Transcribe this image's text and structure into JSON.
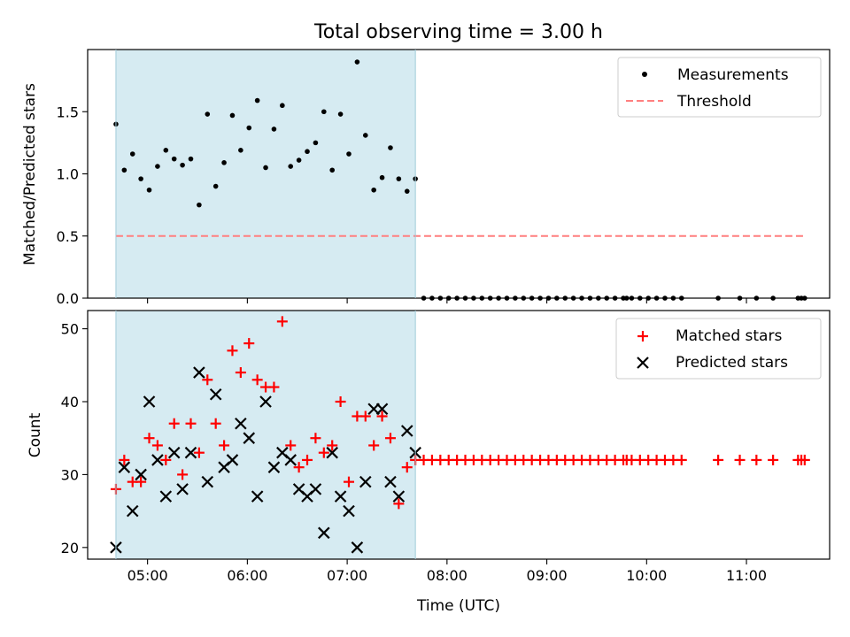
{
  "figure": {
    "title": "Total observing time = 3.00 h"
  },
  "chart_data": [
    {
      "type": "scatter",
      "ylabel": "Matched/Predicted stars",
      "xlabel": "",
      "x_axis": "time (UTC)",
      "xlim": [
        "04:24",
        "11:50"
      ],
      "ylim": [
        0,
        2.0
      ],
      "yticks": [
        0.0,
        0.5,
        1.0,
        1.5
      ],
      "xticks": [
        "05:00",
        "06:00",
        "07:00",
        "08:00",
        "09:00",
        "10:00",
        "11:00"
      ],
      "shaded_interval": [
        "04:41",
        "07:41"
      ],
      "legend_position": "top-right",
      "series": [
        {
          "name": "Measurements",
          "marker": "dot",
          "color": "#000000",
          "points": [
            [
              "04:41",
              1.4
            ],
            [
              "04:46",
              1.03
            ],
            [
              "04:51",
              1.16
            ],
            [
              "04:56",
              0.96
            ],
            [
              "05:01",
              0.87
            ],
            [
              "05:06",
              1.06
            ],
            [
              "05:11",
              1.19
            ],
            [
              "05:16",
              1.12
            ],
            [
              "05:21",
              1.07
            ],
            [
              "05:26",
              1.12
            ],
            [
              "05:31",
              0.75
            ],
            [
              "05:36",
              1.48
            ],
            [
              "05:41",
              0.9
            ],
            [
              "05:46",
              1.09
            ],
            [
              "05:51",
              1.47
            ],
            [
              "05:56",
              1.19
            ],
            [
              "06:01",
              1.37
            ],
            [
              "06:06",
              1.59
            ],
            [
              "06:11",
              1.05
            ],
            [
              "06:16",
              1.36
            ],
            [
              "06:21",
              1.55
            ],
            [
              "06:26",
              1.06
            ],
            [
              "06:31",
              1.11
            ],
            [
              "06:36",
              1.18
            ],
            [
              "06:41",
              1.25
            ],
            [
              "06:46",
              1.5
            ],
            [
              "06:51",
              1.03
            ],
            [
              "06:56",
              1.48
            ],
            [
              "07:01",
              1.16
            ],
            [
              "07:06",
              1.9
            ],
            [
              "07:11",
              1.31
            ],
            [
              "07:16",
              0.87
            ],
            [
              "07:21",
              0.97
            ],
            [
              "07:26",
              1.21
            ],
            [
              "07:31",
              0.96
            ],
            [
              "07:36",
              0.86
            ],
            [
              "07:41",
              0.96
            ],
            [
              "07:46",
              0
            ],
            [
              "07:51",
              0
            ],
            [
              "07:56",
              0
            ],
            [
              "08:01",
              0
            ],
            [
              "08:06",
              0
            ],
            [
              "08:11",
              0
            ],
            [
              "08:16",
              0
            ],
            [
              "08:21",
              0
            ],
            [
              "08:26",
              0
            ],
            [
              "08:31",
              0
            ],
            [
              "08:36",
              0
            ],
            [
              "08:41",
              0
            ],
            [
              "08:46",
              0
            ],
            [
              "08:51",
              0
            ],
            [
              "08:56",
              0
            ],
            [
              "09:01",
              0
            ],
            [
              "09:06",
              0
            ],
            [
              "09:11",
              0
            ],
            [
              "09:16",
              0
            ],
            [
              "09:21",
              0
            ],
            [
              "09:26",
              0
            ],
            [
              "09:31",
              0
            ],
            [
              "09:36",
              0
            ],
            [
              "09:41",
              0
            ],
            [
              "09:46",
              0
            ],
            [
              "09:48",
              0
            ],
            [
              "09:51",
              0
            ],
            [
              "09:56",
              0
            ],
            [
              "10:01",
              0
            ],
            [
              "10:06",
              0
            ],
            [
              "10:11",
              0
            ],
            [
              "10:16",
              0
            ],
            [
              "10:21",
              0
            ],
            [
              "10:43",
              0
            ],
            [
              "10:56",
              0
            ],
            [
              "11:06",
              0
            ],
            [
              "11:16",
              0
            ],
            [
              "11:31",
              0
            ],
            [
              "11:33",
              0
            ],
            [
              "11:35",
              0
            ]
          ]
        },
        {
          "name": "Threshold",
          "style": "dashed-line",
          "color": "#ff7f7f",
          "points": [
            [
              "04:41",
              0.5
            ],
            [
              "11:35",
              0.5
            ]
          ]
        }
      ]
    },
    {
      "type": "scatter",
      "ylabel": "Count",
      "xlabel": "Time (UTC)",
      "xlim": [
        "04:24",
        "11:50"
      ],
      "ylim": [
        18.4,
        52.5
      ],
      "yticks": [
        20,
        30,
        40,
        50
      ],
      "xticks": [
        "05:00",
        "06:00",
        "07:00",
        "08:00",
        "09:00",
        "10:00",
        "11:00"
      ],
      "shaded_interval": [
        "04:41",
        "07:41"
      ],
      "legend_position": "top-right",
      "series": [
        {
          "name": "Matched stars",
          "marker": "plus",
          "color": "#ff0000",
          "points": [
            [
              "04:41",
              28
            ],
            [
              "04:46",
              32
            ],
            [
              "04:51",
              29
            ],
            [
              "04:56",
              29
            ],
            [
              "05:01",
              35
            ],
            [
              "05:06",
              34
            ],
            [
              "05:11",
              32
            ],
            [
              "05:16",
              37
            ],
            [
              "05:21",
              30
            ],
            [
              "05:26",
              37
            ],
            [
              "05:31",
              33
            ],
            [
              "05:36",
              43
            ],
            [
              "05:41",
              37
            ],
            [
              "05:46",
              34
            ],
            [
              "05:51",
              47
            ],
            [
              "05:56",
              44
            ],
            [
              "06:01",
              48
            ],
            [
              "06:06",
              43
            ],
            [
              "06:11",
              42
            ],
            [
              "06:16",
              42
            ],
            [
              "06:21",
              51
            ],
            [
              "06:26",
              34
            ],
            [
              "06:31",
              31
            ],
            [
              "06:36",
              32
            ],
            [
              "06:41",
              35
            ],
            [
              "06:46",
              33
            ],
            [
              "06:51",
              34
            ],
            [
              "06:56",
              40
            ],
            [
              "07:01",
              29
            ],
            [
              "07:06",
              38
            ],
            [
              "07:11",
              38
            ],
            [
              "07:16",
              34
            ],
            [
              "07:21",
              38
            ],
            [
              "07:26",
              35
            ],
            [
              "07:31",
              26
            ],
            [
              "07:36",
              31
            ],
            [
              "07:41",
              32
            ],
            [
              "07:46",
              32
            ],
            [
              "07:51",
              32
            ],
            [
              "07:56",
              32
            ],
            [
              "08:01",
              32
            ],
            [
              "08:06",
              32
            ],
            [
              "08:11",
              32
            ],
            [
              "08:16",
              32
            ],
            [
              "08:21",
              32
            ],
            [
              "08:26",
              32
            ],
            [
              "08:31",
              32
            ],
            [
              "08:36",
              32
            ],
            [
              "08:41",
              32
            ],
            [
              "08:46",
              32
            ],
            [
              "08:51",
              32
            ],
            [
              "08:56",
              32
            ],
            [
              "09:01",
              32
            ],
            [
              "09:06",
              32
            ],
            [
              "09:11",
              32
            ],
            [
              "09:16",
              32
            ],
            [
              "09:21",
              32
            ],
            [
              "09:26",
              32
            ],
            [
              "09:31",
              32
            ],
            [
              "09:36",
              32
            ],
            [
              "09:41",
              32
            ],
            [
              "09:46",
              32
            ],
            [
              "09:48",
              32
            ],
            [
              "09:51",
              32
            ],
            [
              "09:56",
              32
            ],
            [
              "10:01",
              32
            ],
            [
              "10:06",
              32
            ],
            [
              "10:11",
              32
            ],
            [
              "10:16",
              32
            ],
            [
              "10:21",
              32
            ],
            [
              "10:43",
              32
            ],
            [
              "10:56",
              32
            ],
            [
              "11:06",
              32
            ],
            [
              "11:16",
              32
            ],
            [
              "11:31",
              32
            ],
            [
              "11:33",
              32
            ],
            [
              "11:35",
              32
            ]
          ]
        },
        {
          "name": "Predicted stars",
          "marker": "x",
          "color": "#000000",
          "points": [
            [
              "04:41",
              20
            ],
            [
              "04:46",
              31
            ],
            [
              "04:51",
              25
            ],
            [
              "04:56",
              30
            ],
            [
              "05:01",
              40
            ],
            [
              "05:06",
              32
            ],
            [
              "05:11",
              27
            ],
            [
              "05:16",
              33
            ],
            [
              "05:21",
              28
            ],
            [
              "05:26",
              33
            ],
            [
              "05:31",
              44
            ],
            [
              "05:36",
              29
            ],
            [
              "05:41",
              41
            ],
            [
              "05:46",
              31
            ],
            [
              "05:51",
              32
            ],
            [
              "05:56",
              37
            ],
            [
              "06:01",
              35
            ],
            [
              "06:06",
              27
            ],
            [
              "06:11",
              40
            ],
            [
              "06:16",
              31
            ],
            [
              "06:21",
              33
            ],
            [
              "06:26",
              32
            ],
            [
              "06:31",
              28
            ],
            [
              "06:36",
              27
            ],
            [
              "06:41",
              28
            ],
            [
              "06:46",
              22
            ],
            [
              "06:51",
              33
            ],
            [
              "06:56",
              27
            ],
            [
              "07:01",
              25
            ],
            [
              "07:06",
              20
            ],
            [
              "07:11",
              29
            ],
            [
              "07:16",
              39
            ],
            [
              "07:21",
              39
            ],
            [
              "07:26",
              29
            ],
            [
              "07:31",
              27
            ],
            [
              "07:36",
              36
            ],
            [
              "07:41",
              33
            ]
          ]
        }
      ]
    }
  ]
}
